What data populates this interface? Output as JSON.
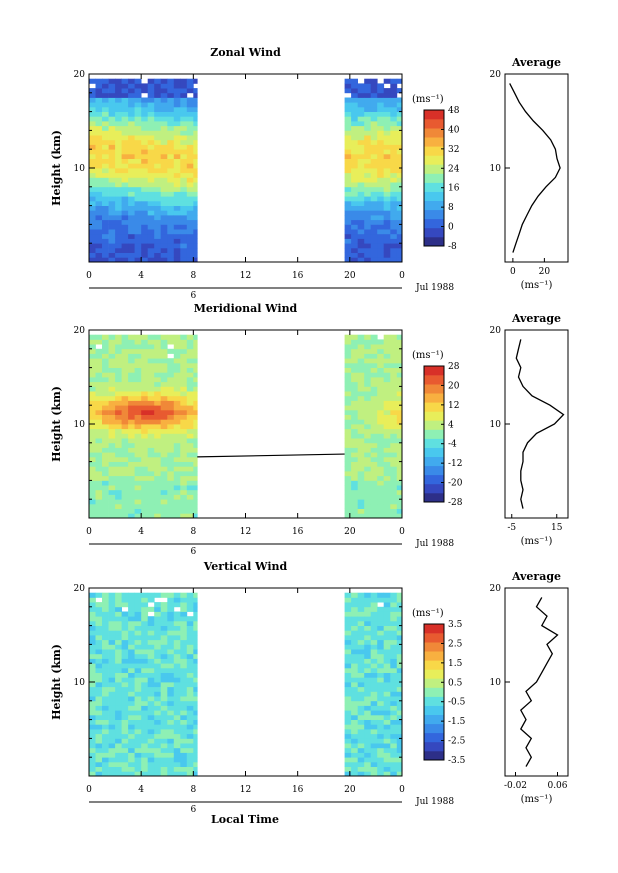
{
  "figure_date": "Jul 1988",
  "xlabel": "Local Time",
  "x_ticks": [
    "0",
    "4",
    "8",
    "12",
    "16",
    "20",
    "0"
  ],
  "day_marker": "6",
  "ylabel": "Height (km)",
  "y_ticks": [
    "20",
    "10"
  ],
  "colorbar_unit": "(ms⁻¹)",
  "profile_unit": "(ms⁻¹)",
  "profile_title": "Average",
  "palette": [
    "#2d2f88",
    "#3548bf",
    "#3366dd",
    "#3a8ae8",
    "#41aaee",
    "#49c8ee",
    "#5fe0e0",
    "#8ef0b4",
    "#c0f080",
    "#e8ee5a",
    "#f8d848",
    "#f8b040",
    "#f08838",
    "#e85a30",
    "#d83028"
  ],
  "chart_data": [
    {
      "type": "heatmap",
      "title": "Zonal Wind",
      "x": [
        0,
        4,
        8,
        12,
        16,
        20,
        24
      ],
      "data_hours": [
        [
          0,
          8.3
        ],
        [
          19.6,
          24
        ]
      ],
      "ylim": [
        0,
        20
      ],
      "colorbar": {
        "ticks": [
          "48",
          "40",
          "32",
          "24",
          "16",
          "8",
          "0",
          "-8"
        ],
        "range": [
          -8,
          48
        ]
      },
      "avg_profile": {
        "xticks": [
          "0",
          "20"
        ],
        "xlim": [
          -5,
          35
        ],
        "height": [
          1,
          2,
          3,
          4,
          5,
          6,
          7,
          8,
          9,
          10,
          11,
          12,
          13,
          14,
          15,
          16,
          17,
          18,
          19
        ],
        "value": [
          0,
          2,
          4,
          6,
          9,
          12,
          16,
          21,
          27,
          30,
          28,
          27,
          24,
          19,
          13,
          8,
          4,
          1,
          -2
        ]
      }
    },
    {
      "type": "heatmap",
      "title": "Meridional Wind",
      "x": [
        0,
        4,
        8,
        12,
        16,
        20,
        24
      ],
      "data_hours": [
        [
          0,
          8.3
        ],
        [
          19.6,
          24
        ]
      ],
      "ylim": [
        0,
        20
      ],
      "colorbar": {
        "ticks": [
          "28",
          "20",
          "12",
          "4",
          "-4",
          "-12",
          "-20",
          "-28"
        ],
        "range": [
          -28,
          28
        ]
      },
      "avg_profile": {
        "xticks": [
          "-5",
          "15"
        ],
        "xlim": [
          -8,
          20
        ],
        "height": [
          1,
          2,
          3,
          4,
          5,
          6,
          7,
          8,
          9,
          10,
          11,
          12,
          13,
          14,
          15,
          16,
          17,
          18,
          19
        ],
        "value": [
          0,
          -1,
          0,
          -1,
          -1,
          0,
          0,
          2,
          6,
          14,
          18,
          12,
          4,
          0,
          -2,
          -1,
          -3,
          -2,
          -1
        ]
      }
    },
    {
      "type": "heatmap",
      "title": "Vertical Wind",
      "x": [
        0,
        4,
        8,
        12,
        16,
        20,
        24
      ],
      "data_hours": [
        [
          0,
          8.3
        ],
        [
          19.6,
          24
        ]
      ],
      "ylim": [
        0,
        20
      ],
      "colorbar": {
        "ticks": [
          "3.5",
          "2.5",
          "1.5",
          "0.5",
          "-0.5",
          "-1.5",
          "-2.5",
          "-3.5"
        ],
        "range": [
          -3.5,
          3.5
        ]
      },
      "avg_profile": {
        "xticks": [
          "-0.02",
          "0.06"
        ],
        "xlim": [
          -0.04,
          0.08
        ],
        "height": [
          1,
          2,
          3,
          4,
          5,
          6,
          7,
          8,
          9,
          10,
          11,
          12,
          13,
          14,
          15,
          16,
          17,
          18,
          19
        ],
        "value": [
          0.0,
          0.01,
          0.0,
          0.01,
          -0.01,
          0.0,
          -0.01,
          0.01,
          0.0,
          0.02,
          0.03,
          0.04,
          0.05,
          0.04,
          0.06,
          0.03,
          0.04,
          0.02,
          0.03
        ]
      }
    }
  ]
}
